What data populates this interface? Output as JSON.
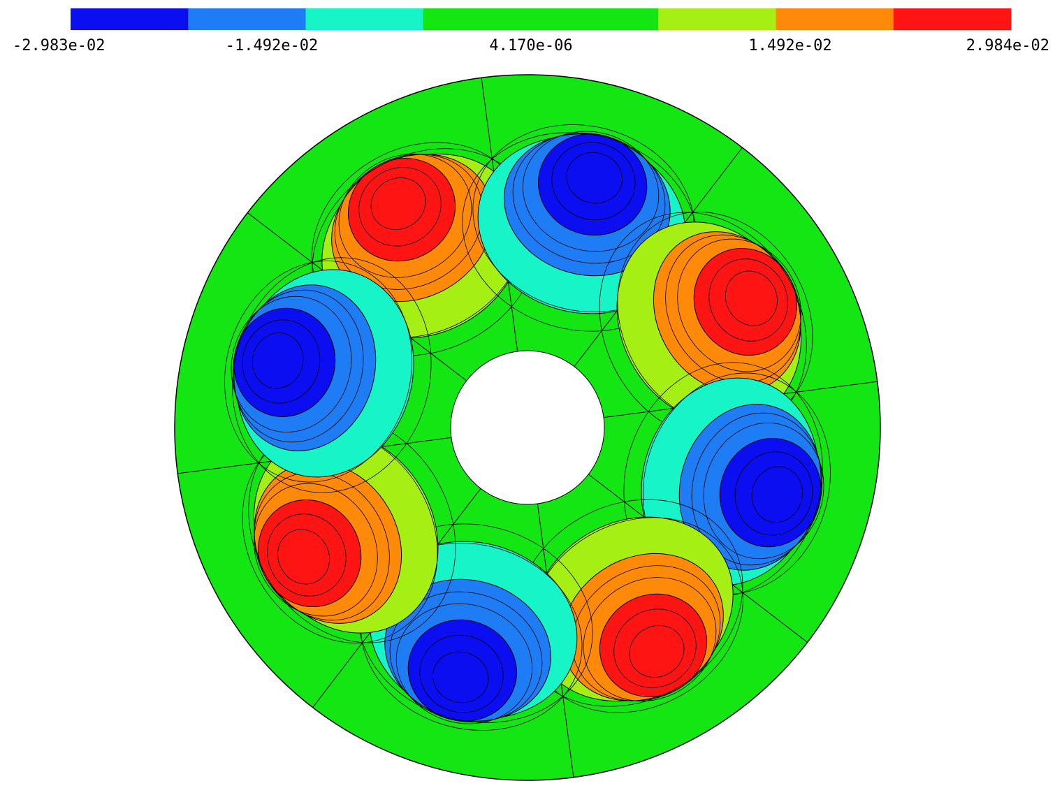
{
  "colorbar": {
    "colors": [
      "#0b0ef0",
      "#1e7cf5",
      "#17f5c8",
      "#14e614",
      "#14e614",
      "#a6ef14",
      "#ff8a0a",
      "#ff1414"
    ],
    "labels": [
      "-2.983e-02",
      "-1.492e-02",
      "4.170e-06",
      "1.492e-02",
      "2.984e-02"
    ]
  }
}
